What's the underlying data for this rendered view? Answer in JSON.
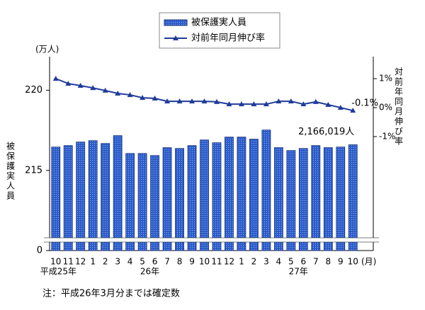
{
  "chart_data": {
    "type": "bar",
    "y_unit": "(万人)",
    "ylabel": "被保護実人員",
    "y2label": "対前年同月伸び率",
    "x_unit": "(月)",
    "note": "注：平成26年3月分までは確定数",
    "categories": [
      "10",
      "11",
      "12",
      "1",
      "2",
      "3",
      "4",
      "5",
      "6",
      "7",
      "8",
      "9",
      "10",
      "11",
      "12",
      "1",
      "2",
      "3",
      "4",
      "5",
      "6",
      "7",
      "8",
      "9",
      "10"
    ],
    "year_labels": [
      "平成25年",
      "26年",
      "27年"
    ],
    "ylim": [
      210,
      222.1
    ],
    "yticks": [
      {
        "value": 210,
        "label": "0"
      },
      215,
      220
    ],
    "y2lim": [
      -4.93,
      1.76
    ],
    "y2ticks": [
      {
        "value": 1,
        "label": "1%"
      },
      {
        "value": 0,
        "label": "0%"
      },
      {
        "value": -1,
        "label": "-1%"
      }
    ],
    "series": [
      {
        "name": "被保護実人員",
        "type": "bar",
        "color": "#2a5cc8",
        "values": [
          216.46,
          216.55,
          216.77,
          216.86,
          216.68,
          217.17,
          216.06,
          216.06,
          215.93,
          216.42,
          216.37,
          216.55,
          216.9,
          216.73,
          217.08,
          217.08,
          216.95,
          217.52,
          216.42,
          216.24,
          216.37,
          216.55,
          216.42,
          216.46,
          216.6019
        ],
        "value_labels": [
          null,
          null,
          null,
          null,
          null,
          null,
          null,
          null,
          null,
          null,
          null,
          null,
          null,
          null,
          null,
          null,
          null,
          null,
          null,
          null,
          null,
          null,
          null,
          null,
          "2,166,019人"
        ]
      },
      {
        "name": "対前年同月伸び率",
        "type": "line",
        "axis": "y2",
        "color": "#1f3b9a",
        "values": [
          1.0,
          0.83,
          0.76,
          0.68,
          0.59,
          0.49,
          0.44,
          0.34,
          0.32,
          0.22,
          0.22,
          0.22,
          0.22,
          0.2,
          0.12,
          0.12,
          0.12,
          0.12,
          0.22,
          0.22,
          0.12,
          0.2,
          0.1,
          0.0,
          -0.1
        ],
        "value_labels": [
          null,
          null,
          null,
          null,
          null,
          null,
          null,
          null,
          null,
          null,
          null,
          null,
          null,
          null,
          null,
          null,
          null,
          null,
          null,
          null,
          null,
          null,
          null,
          null,
          "-0.1%"
        ]
      }
    ]
  }
}
